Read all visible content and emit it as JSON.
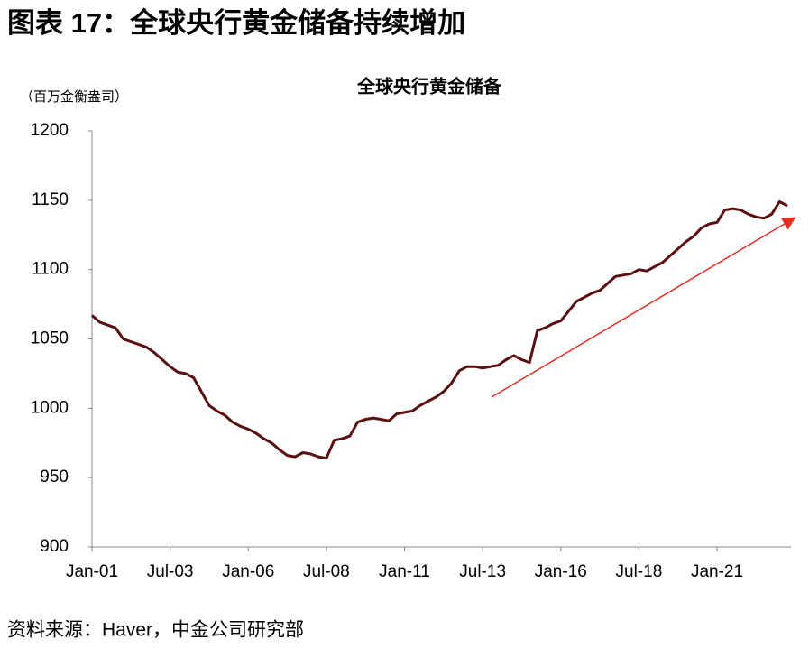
{
  "header": "图表 17：全球央行黄金储备持续增加",
  "source": "资料来源：Haver，中金公司研究部",
  "chart_data": {
    "type": "line",
    "title": "全球央行黄金储备",
    "y_axis_label": "（百万金衡盎司）",
    "categories": [
      "Jan-01",
      null,
      null,
      null,
      null,
      null,
      null,
      null,
      null,
      null,
      "Jul-03",
      null,
      null,
      null,
      null,
      null,
      null,
      null,
      null,
      null,
      "Jan-06",
      null,
      null,
      null,
      null,
      null,
      null,
      null,
      null,
      null,
      "Jul-08",
      null,
      null,
      null,
      null,
      null,
      null,
      null,
      null,
      null,
      "Jan-11",
      null,
      null,
      null,
      null,
      null,
      null,
      null,
      null,
      null,
      "Jul-13",
      null,
      null,
      null,
      null,
      null,
      null,
      null,
      null,
      null,
      "Jan-16",
      null,
      null,
      null,
      null,
      null,
      null,
      null,
      null,
      null,
      "Jul-18",
      null,
      null,
      null,
      null,
      null,
      null,
      null,
      null,
      null,
      "Jan-21",
      null,
      null,
      null,
      null,
      null,
      null,
      null,
      null,
      null
    ],
    "series": [
      {
        "name": "全球央行黄金储备",
        "color": "#5a1010",
        "values": [
          1067,
          1062,
          1060,
          1058,
          1050,
          1048,
          1046,
          1044,
          1040,
          1035,
          1030,
          1026,
          1025,
          1022,
          1012,
          1002,
          998,
          995,
          990,
          987,
          985,
          982,
          978,
          975,
          970,
          966,
          965,
          968,
          967,
          965,
          964,
          977,
          978,
          980,
          990,
          992,
          993,
          992,
          991,
          996,
          997,
          998,
          1002,
          1005,
          1008,
          1012,
          1018,
          1027,
          1030,
          1030,
          1029,
          1030,
          1031,
          1035,
          1038,
          1035,
          1033,
          1056,
          1058,
          1061,
          1063,
          1070,
          1077,
          1080,
          1083,
          1085,
          1090,
          1095,
          1096,
          1097,
          1100,
          1099,
          1102,
          1105,
          1110,
          1115,
          1120,
          1124,
          1130,
          1133,
          1134,
          1143,
          1144,
          1143,
          1140,
          1138,
          1137,
          1140,
          1149,
          1146
        ]
      }
    ],
    "ylim": [
      900,
      1200
    ],
    "yticks": [
      900,
      950,
      1000,
      1050,
      1100,
      1150,
      1200
    ],
    "grid": false
  }
}
